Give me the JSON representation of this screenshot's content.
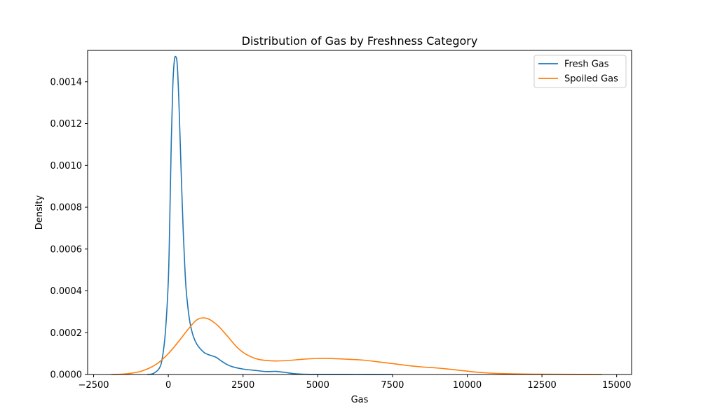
{
  "chart_data": {
    "type": "line",
    "title": "Distribution of Gas by Freshness Category",
    "xlabel": "Gas",
    "ylabel": "Density",
    "xlim": [
      -2700,
      15500
    ],
    "ylim": [
      0,
      0.00155
    ],
    "xticks": [
      -2500,
      0,
      2500,
      5000,
      7500,
      10000,
      12500,
      15000
    ],
    "xtick_labels": [
      "−2500",
      "0",
      "2500",
      "5000",
      "7500",
      "10000",
      "12500",
      "15000"
    ],
    "yticks": [
      0,
      0.0002,
      0.0004,
      0.0006,
      0.0008,
      0.001,
      0.0012,
      0.0014
    ],
    "ytick_labels": [
      "0.0000",
      "0.0002",
      "0.0004",
      "0.0006",
      "0.0008",
      "0.0010",
      "0.0012",
      "0.0014"
    ],
    "grid": false,
    "legend_position": "top-right",
    "series": [
      {
        "name": "Fresh Gas",
        "color": "#1f77b4",
        "points": [
          [
            -700,
            0
          ],
          [
            -500,
            5e-06
          ],
          [
            -300,
            3e-05
          ],
          [
            -200,
            8e-05
          ],
          [
            -100,
            0.0002
          ],
          [
            0,
            0.00045
          ],
          [
            50,
            0.00075
          ],
          [
            100,
            0.00112
          ],
          [
            150,
            0.00138
          ],
          [
            200,
            0.0015
          ],
          [
            250,
            0.00152
          ],
          [
            300,
            0.00148
          ],
          [
            350,
            0.00132
          ],
          [
            400,
            0.0011
          ],
          [
            450,
            0.00088
          ],
          [
            500,
            0.00068
          ],
          [
            550,
            0.00052
          ],
          [
            600,
            0.0004
          ],
          [
            700,
            0.00027
          ],
          [
            800,
            0.0002
          ],
          [
            900,
            0.00016
          ],
          [
            1000,
            0.000135
          ],
          [
            1200,
            0.000105
          ],
          [
            1400,
            9.2e-05
          ],
          [
            1600,
            8.2e-05
          ],
          [
            1800,
            6.2e-05
          ],
          [
            2000,
            4.5e-05
          ],
          [
            2200,
            3.5e-05
          ],
          [
            2500,
            2.6e-05
          ],
          [
            2800,
            2.1e-05
          ],
          [
            3000,
            1.8e-05
          ],
          [
            3300,
            1.4e-05
          ],
          [
            3600,
            1.5e-05
          ],
          [
            3900,
            1e-05
          ],
          [
            4200,
            4e-06
          ],
          [
            4600,
            1e-06
          ],
          [
            5000,
            5e-07
          ],
          [
            6000,
            5e-07
          ],
          [
            7500,
            0
          ]
        ]
      },
      {
        "name": "Spoiled Gas",
        "color": "#ff7f0e",
        "points": [
          [
            -1900,
            0
          ],
          [
            -1500,
            2e-06
          ],
          [
            -1200,
            7e-06
          ],
          [
            -900,
            1.6e-05
          ],
          [
            -600,
            3.3e-05
          ],
          [
            -300,
            6e-05
          ],
          [
            0,
            0.0001
          ],
          [
            300,
            0.00015
          ],
          [
            600,
            0.000205
          ],
          [
            900,
            0.000255
          ],
          [
            1100,
            0.00027
          ],
          [
            1300,
            0.000268
          ],
          [
            1500,
            0.000252
          ],
          [
            1700,
            0.000228
          ],
          [
            2000,
            0.00018
          ],
          [
            2300,
            0.00013
          ],
          [
            2600,
            9.7e-05
          ],
          [
            3000,
            7.3e-05
          ],
          [
            3500,
            6.5e-05
          ],
          [
            4000,
            6.7e-05
          ],
          [
            4500,
            7.3e-05
          ],
          [
            5000,
            7.7e-05
          ],
          [
            5500,
            7.6e-05
          ],
          [
            6000,
            7.3e-05
          ],
          [
            6500,
            6.9e-05
          ],
          [
            7000,
            6.1e-05
          ],
          [
            7500,
            5.2e-05
          ],
          [
            8000,
            4.3e-05
          ],
          [
            8500,
            3.6e-05
          ],
          [
            9000,
            3.1e-05
          ],
          [
            9500,
            2.4e-05
          ],
          [
            10000,
            1.6e-05
          ],
          [
            10500,
            9e-06
          ],
          [
            11000,
            5e-06
          ],
          [
            12000,
            2e-06
          ],
          [
            13000,
            1e-06
          ],
          [
            14500,
            0
          ]
        ]
      }
    ]
  }
}
